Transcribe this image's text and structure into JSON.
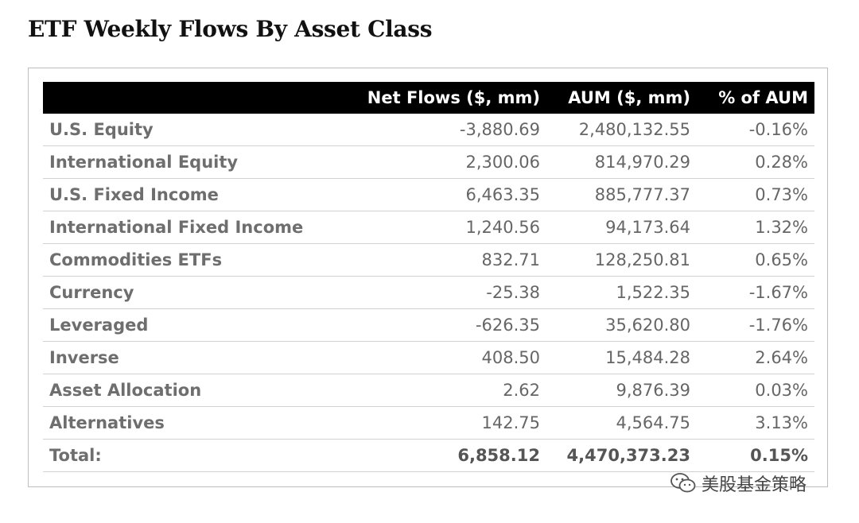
{
  "title": "ETF Weekly Flows By Asset Class",
  "chart_data": {
    "type": "table",
    "title": "ETF Weekly Flows By Asset Class",
    "columns": [
      "",
      "Net Flows ($, mm)",
      "AUM ($, mm)",
      "% of AUM"
    ],
    "rows": [
      {
        "label": "U.S. Equity",
        "net_flows": "-3,880.69",
        "aum": "2,480,132.55",
        "pct_aum": "-0.16%"
      },
      {
        "label": "International Equity",
        "net_flows": "2,300.06",
        "aum": "814,970.29",
        "pct_aum": "0.28%"
      },
      {
        "label": "U.S. Fixed Income",
        "net_flows": "6,463.35",
        "aum": "885,777.37",
        "pct_aum": "0.73%"
      },
      {
        "label": "International Fixed Income",
        "net_flows": "1,240.56",
        "aum": "94,173.64",
        "pct_aum": "1.32%"
      },
      {
        "label": "Commodities ETFs",
        "net_flows": "832.71",
        "aum": "128,250.81",
        "pct_aum": "0.65%"
      },
      {
        "label": "Currency",
        "net_flows": "-25.38",
        "aum": "1,522.35",
        "pct_aum": "-1.67%"
      },
      {
        "label": "Leveraged",
        "net_flows": "-626.35",
        "aum": "35,620.80",
        "pct_aum": "-1.76%"
      },
      {
        "label": "Inverse",
        "net_flows": "408.50",
        "aum": "15,484.28",
        "pct_aum": "2.64%"
      },
      {
        "label": "Asset Allocation",
        "net_flows": "2.62",
        "aum": "9,876.39",
        "pct_aum": "0.03%"
      },
      {
        "label": "Alternatives",
        "net_flows": "142.75",
        "aum": "4,564.75",
        "pct_aum": "3.13%"
      }
    ],
    "total": {
      "label": "Total:",
      "net_flows": "6,858.12",
      "aum": "4,470,373.23",
      "pct_aum": "0.15%"
    }
  },
  "watermark": {
    "text": "美股基金策略",
    "icon": "wechat-icon"
  }
}
